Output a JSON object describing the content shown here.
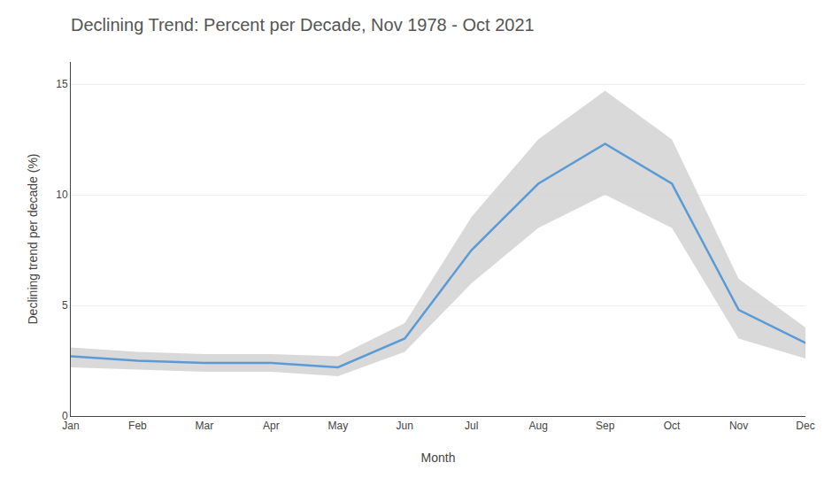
{
  "chart_data": {
    "type": "line",
    "title": "Declining Trend: Percent per Decade, Nov 1978 - Oct 2021",
    "xlabel": "Month",
    "ylabel": "Declining trend per decade (%)",
    "categories": [
      "Jan",
      "Feb",
      "Mar",
      "Apr",
      "May",
      "Jun",
      "Jul",
      "Aug",
      "Sep",
      "Oct",
      "Nov",
      "Dec"
    ],
    "series": [
      {
        "color": "#5b9bd5",
        "values": [
          2.7,
          2.5,
          2.4,
          2.4,
          2.2,
          3.5,
          7.5,
          10.5,
          12.3,
          10.5,
          4.8,
          3.3
        ],
        "interval": {
          "color": "#d0d0d0",
          "lower": [
            2.2,
            2.1,
            2.0,
            2.0,
            1.8,
            2.9,
            6.0,
            8.5,
            10.0,
            8.5,
            3.5,
            2.6
          ],
          "upper": [
            3.1,
            2.9,
            2.8,
            2.8,
            2.7,
            4.2,
            9.0,
            12.5,
            14.7,
            12.5,
            6.2,
            4.0
          ]
        }
      }
    ],
    "ylim": [
      0,
      16
    ],
    "yticks": [
      0,
      5,
      10,
      15
    ],
    "grid": true
  }
}
